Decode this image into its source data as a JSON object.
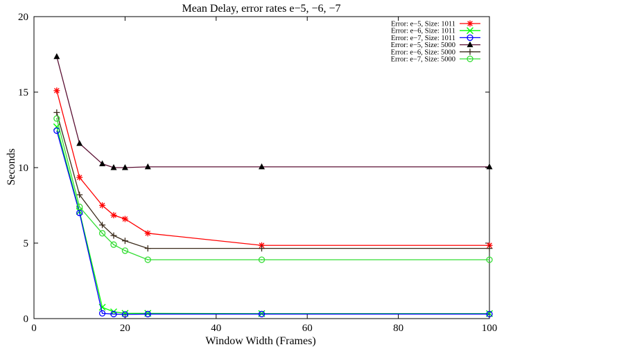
{
  "chart_data": {
    "type": "line",
    "title": "Mean Delay, error rates e−5, −6, −7",
    "xlabel": "Window Width (Frames)",
    "ylabel": "Seconds",
    "xlim": [
      0,
      100
    ],
    "ylim": [
      0,
      20
    ],
    "x_ticks": [
      "0",
      "20",
      "40",
      "60",
      "80",
      "100"
    ],
    "y_ticks": [
      "0",
      "5",
      "10",
      "15",
      "20"
    ],
    "x_tick_values": [
      0,
      20,
      40,
      60,
      80,
      100
    ],
    "y_tick_values": [
      0,
      5,
      10,
      15,
      20
    ],
    "grid": false,
    "legend_position": "top-right",
    "x": [
      5,
      10,
      15,
      17.5,
      20,
      25,
      50,
      100
    ],
    "series": [
      {
        "name": "Error: e−5, Size: 1011",
        "color": "#ff0000",
        "marker": "asterisk",
        "values": [
          15.1,
          9.35,
          7.5,
          6.85,
          6.6,
          5.65,
          4.85,
          4.85
        ]
      },
      {
        "name": "Error: e−6, Size: 1011",
        "color": "#00ff00",
        "marker": "x",
        "values": [
          12.7,
          7.1,
          0.75,
          0.45,
          0.35,
          0.35,
          0.33,
          0.33
        ]
      },
      {
        "name": "Error: e−7, Size: 1011",
        "color": "#0000ff",
        "marker": "circle",
        "values": [
          12.45,
          7.0,
          0.35,
          0.3,
          0.28,
          0.3,
          0.3,
          0.3
        ]
      },
      {
        "name": "Error: e−5, Size: 5000",
        "color": "#5a0f32",
        "marker": "triangle",
        "values": [
          17.35,
          11.6,
          10.25,
          10.0,
          10.0,
          10.05,
          10.05,
          10.05
        ]
      },
      {
        "name": "Error: e−6, Size: 5000",
        "color": "#3a2a1a",
        "marker": "plus",
        "values": [
          13.65,
          8.2,
          6.2,
          5.5,
          5.15,
          4.65,
          4.65,
          4.65
        ]
      },
      {
        "name": "Error: e−7, Size: 5000",
        "color": "#33dd33",
        "marker": "circle-dot",
        "values": [
          13.25,
          7.4,
          5.65,
          4.9,
          4.5,
          3.9,
          3.9,
          3.9
        ]
      }
    ]
  }
}
